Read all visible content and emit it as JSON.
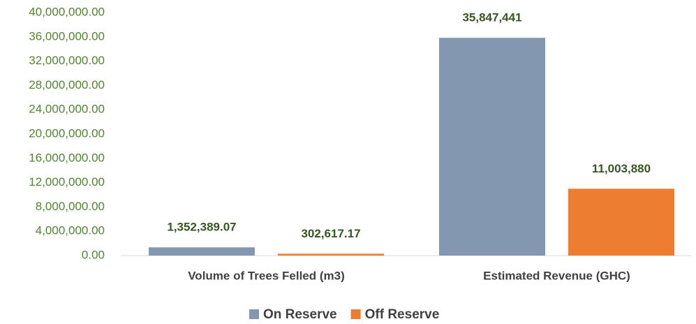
{
  "chart_data": {
    "type": "bar",
    "categories": [
      "Volume of Trees Felled (m3)",
      "Estimated Revenue (GHC)"
    ],
    "series": [
      {
        "name": "On Reserve",
        "color": "#8497b0",
        "values": [
          1352389.07,
          35847441
        ],
        "value_labels": [
          "1,352,389.07",
          "35,847,441"
        ]
      },
      {
        "name": "Off Reserve",
        "color": "#ed7d31",
        "values": [
          302617.17,
          11003880
        ],
        "value_labels": [
          "302,617.17",
          "11,003,880"
        ]
      }
    ],
    "ylim": [
      0,
      40000000
    ],
    "yticks": [
      {
        "value": 0,
        "label": "0.00"
      },
      {
        "value": 4000000,
        "label": "4,000,000.00"
      },
      {
        "value": 8000000,
        "label": "8,000,000.00"
      },
      {
        "value": 12000000,
        "label": "12,000,000.00"
      },
      {
        "value": 16000000,
        "label": "16,000,000.00"
      },
      {
        "value": 20000000,
        "label": "20,000,000.00"
      },
      {
        "value": 24000000,
        "label": "24,000,000.00"
      },
      {
        "value": 28000000,
        "label": "28,000,000.00"
      },
      {
        "value": 32000000,
        "label": "32,000,000.00"
      },
      {
        "value": 36000000,
        "label": "36,000,000.00"
      },
      {
        "value": 40000000,
        "label": "40,000,000.00"
      }
    ],
    "grid": false
  }
}
